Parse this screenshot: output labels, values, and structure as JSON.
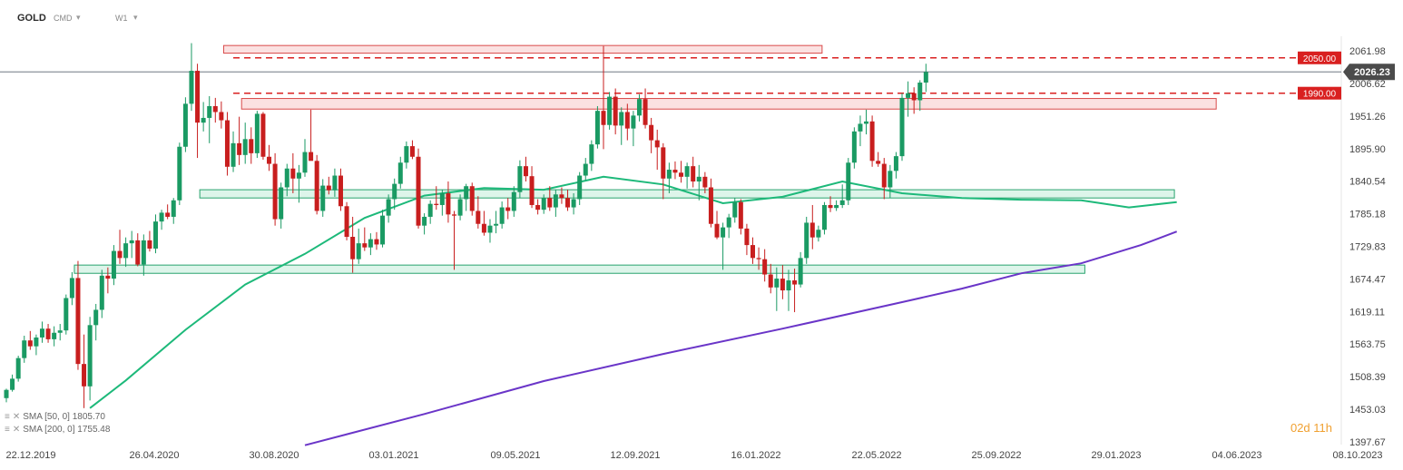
{
  "header": {
    "symbol": "GOLD",
    "symbol_type": "CMD",
    "timeframe": "W1"
  },
  "indicators": [
    {
      "label": "SMA",
      "params": "[50, 0]",
      "value": "1805.70",
      "color": "#1db97a"
    },
    {
      "label": "SMA",
      "params": "[200, 0]",
      "value": "1755.48",
      "color": "#6a35c8"
    }
  ],
  "timer": "02d 11h",
  "colors": {
    "bull": "#1a9a63",
    "bear": "#c81e1e",
    "resistance_fill": "#fadada",
    "resistance_stroke": "#d94a4a",
    "support_fill": "#d5f3e5",
    "support_stroke": "#28a36e",
    "sma50": "#1db97a",
    "sma200": "#6a35c8",
    "price_tag": "#4b4b4b",
    "level_tag": "#d92020"
  },
  "chart_data": {
    "type": "candlestick",
    "instrument": "GOLD",
    "timeframe": "W1",
    "y_ticks": [
      2061.98,
      2006.62,
      1951.26,
      1895.9,
      1840.54,
      1785.18,
      1729.83,
      1674.47,
      1619.11,
      1563.75,
      1508.39,
      1453.03,
      1397.67
    ],
    "y_tick_labels": [
      "2061.98",
      "2006.62",
      "1951.26",
      "1895.90",
      "1840.54",
      "1785.18",
      "1729.83",
      "1674.47",
      "1619.11",
      "1563.75",
      "1508.39",
      "1453.03",
      "1397.67"
    ],
    "x_tick_labels": [
      "22.12.2019",
      "26.04.2020",
      "30.08.2020",
      "03.01.2021",
      "09.05.2021",
      "12.09.2021",
      "16.01.2022",
      "22.05.2022",
      "25.09.2022",
      "29.01.2023",
      "04.06.2023",
      "08.10.2023"
    ],
    "ylim": [
      1391,
      2087
    ],
    "current_price": 2026.23,
    "current_price_label": "2026.23",
    "levels": [
      {
        "value": 2050,
        "label": "2050.00",
        "style": "dashed"
      },
      {
        "value": 1990,
        "label": "1990.00",
        "style": "dashed"
      }
    ],
    "zones": [
      {
        "kind": "resistance",
        "from_bar": 37,
        "to_bar": 136,
        "low": 2058,
        "high": 2071
      },
      {
        "kind": "resistance",
        "from_bar": 40,
        "to_bar": 202,
        "low": 1963,
        "high": 1981
      },
      {
        "kind": "support",
        "from_bar": 33,
        "to_bar": 195,
        "low": 1812,
        "high": 1826
      },
      {
        "kind": "support",
        "from_bar": 12,
        "to_bar": 180,
        "low": 1684,
        "high": 1698
      }
    ],
    "series": [
      {
        "name": "SMA [50, 0]",
        "type": "line",
        "points": [
          [
            14,
            1455
          ],
          [
            20,
            1502
          ],
          [
            30,
            1588
          ],
          [
            40,
            1665
          ],
          [
            50,
            1717
          ],
          [
            60,
            1778
          ],
          [
            70,
            1816
          ],
          [
            80,
            1829
          ],
          [
            90,
            1826
          ],
          [
            100,
            1848
          ],
          [
            110,
            1835
          ],
          [
            120,
            1803
          ],
          [
            130,
            1814
          ],
          [
            140,
            1840
          ],
          [
            150,
            1820
          ],
          [
            160,
            1812
          ],
          [
            170,
            1809
          ],
          [
            180,
            1808
          ],
          [
            188,
            1796
          ],
          [
            196,
            1805
          ]
        ]
      },
      {
        "name": "SMA [200, 0]",
        "type": "line",
        "points": [
          [
            50,
            1392
          ],
          [
            70,
            1445
          ],
          [
            90,
            1501
          ],
          [
            110,
            1547
          ],
          [
            130,
            1590
          ],
          [
            150,
            1635
          ],
          [
            160,
            1658
          ],
          [
            170,
            1684
          ],
          [
            180,
            1701
          ],
          [
            190,
            1732
          ],
          [
            196,
            1755
          ]
        ]
      }
    ],
    "candles": [
      [
        1472,
        1488,
        1465,
        1486
      ],
      [
        1486,
        1512,
        1483,
        1505
      ],
      [
        1505,
        1544,
        1500,
        1540
      ],
      [
        1540,
        1578,
        1532,
        1570
      ],
      [
        1570,
        1586,
        1554,
        1560
      ],
      [
        1560,
        1580,
        1545,
        1575
      ],
      [
        1575,
        1602,
        1566,
        1590
      ],
      [
        1590,
        1598,
        1566,
        1572
      ],
      [
        1572,
        1594,
        1560,
        1583
      ],
      [
        1583,
        1598,
        1570,
        1587
      ],
      [
        1587,
        1648,
        1580,
        1642
      ],
      [
        1642,
        1686,
        1630,
        1676
      ],
      [
        1676,
        1705,
        1520,
        1530
      ],
      [
        1530,
        1580,
        1455,
        1492
      ],
      [
        1492,
        1610,
        1468,
        1596
      ],
      [
        1596,
        1632,
        1570,
        1622
      ],
      [
        1622,
        1690,
        1608,
        1680
      ],
      [
        1680,
        1694,
        1650,
        1675
      ],
      [
        1675,
        1732,
        1664,
        1722
      ],
      [
        1722,
        1758,
        1700,
        1710
      ],
      [
        1710,
        1745,
        1695,
        1735
      ],
      [
        1735,
        1756,
        1710,
        1740
      ],
      [
        1740,
        1752,
        1696,
        1699
      ],
      [
        1699,
        1750,
        1680,
        1740
      ],
      [
        1740,
        1756,
        1721,
        1726
      ],
      [
        1726,
        1784,
        1718,
        1772
      ],
      [
        1772,
        1792,
        1758,
        1787
      ],
      [
        1787,
        1801,
        1776,
        1780
      ],
      [
        1780,
        1812,
        1768,
        1808
      ],
      [
        1808,
        1906,
        1800,
        1899
      ],
      [
        1899,
        1983,
        1890,
        1972
      ],
      [
        1972,
        2075,
        1960,
        2028
      ],
      [
        2028,
        2040,
        1880,
        1940
      ],
      [
        1940,
        1975,
        1925,
        1948
      ],
      [
        1948,
        1985,
        1905,
        1968
      ],
      [
        1968,
        1982,
        1940,
        1958
      ],
      [
        1958,
        1976,
        1930,
        1944
      ],
      [
        1944,
        1958,
        1850,
        1865
      ],
      [
        1865,
        1925,
        1856,
        1905
      ],
      [
        1905,
        1950,
        1868,
        1885
      ],
      [
        1885,
        1940,
        1870,
        1912
      ],
      [
        1912,
        1932,
        1870,
        1888
      ],
      [
        1888,
        1960,
        1880,
        1955
      ],
      [
        1955,
        1958,
        1877,
        1882
      ],
      [
        1882,
        1902,
        1858,
        1870
      ],
      [
        1870,
        1888,
        1765,
        1776
      ],
      [
        1776,
        1838,
        1760,
        1830
      ],
      [
        1830,
        1870,
        1815,
        1862
      ],
      [
        1862,
        1888,
        1820,
        1845
      ],
      [
        1845,
        1868,
        1804,
        1855
      ],
      [
        1855,
        1912,
        1848,
        1890
      ],
      [
        1890,
        1962,
        1880,
        1875
      ],
      [
        1875,
        1885,
        1784,
        1790
      ],
      [
        1790,
        1844,
        1780,
        1833
      ],
      [
        1833,
        1848,
        1818,
        1825
      ],
      [
        1825,
        1862,
        1814,
        1850
      ],
      [
        1850,
        1862,
        1790,
        1798
      ],
      [
        1798,
        1805,
        1740,
        1746
      ],
      [
        1746,
        1780,
        1685,
        1708
      ],
      [
        1708,
        1760,
        1700,
        1735
      ],
      [
        1735,
        1762,
        1722,
        1728
      ],
      [
        1728,
        1752,
        1715,
        1742
      ],
      [
        1742,
        1754,
        1724,
        1733
      ],
      [
        1733,
        1792,
        1728,
        1782
      ],
      [
        1782,
        1818,
        1770,
        1810
      ],
      [
        1810,
        1845,
        1792,
        1836
      ],
      [
        1836,
        1882,
        1828,
        1872
      ],
      [
        1872,
        1908,
        1862,
        1900
      ],
      [
        1900,
        1910,
        1878,
        1882
      ],
      [
        1882,
        1896,
        1760,
        1765
      ],
      [
        1765,
        1786,
        1750,
        1780
      ],
      [
        1780,
        1808,
        1768,
        1802
      ],
      [
        1802,
        1832,
        1792,
        1800
      ],
      [
        1800,
        1826,
        1782,
        1820
      ],
      [
        1820,
        1840,
        1770,
        1784
      ],
      [
        1784,
        1790,
        1690,
        1782
      ],
      [
        1782,
        1818,
        1774,
        1810
      ],
      [
        1810,
        1836,
        1790,
        1832
      ],
      [
        1832,
        1838,
        1782,
        1790
      ],
      [
        1790,
        1815,
        1760,
        1768
      ],
      [
        1768,
        1790,
        1748,
        1753
      ],
      [
        1753,
        1776,
        1736,
        1765
      ],
      [
        1765,
        1790,
        1752,
        1768
      ],
      [
        1768,
        1806,
        1760,
        1796
      ],
      [
        1796,
        1812,
        1776,
        1790
      ],
      [
        1790,
        1832,
        1780,
        1822
      ],
      [
        1822,
        1876,
        1812,
        1866
      ],
      [
        1866,
        1882,
        1840,
        1849
      ],
      [
        1849,
        1866,
        1795,
        1800
      ],
      [
        1800,
        1810,
        1784,
        1792
      ],
      [
        1792,
        1818,
        1785,
        1812
      ],
      [
        1812,
        1832,
        1790,
        1796
      ],
      [
        1796,
        1826,
        1780,
        1818
      ],
      [
        1818,
        1830,
        1802,
        1812
      ],
      [
        1812,
        1826,
        1790,
        1796
      ],
      [
        1796,
        1820,
        1784,
        1810
      ],
      [
        1810,
        1856,
        1800,
        1850
      ],
      [
        1850,
        1880,
        1842,
        1870
      ],
      [
        1870,
        1910,
        1858,
        1903
      ],
      [
        1903,
        1968,
        1896,
        1960
      ],
      [
        1960,
        2070,
        1895,
        1936
      ],
      [
        1936,
        1992,
        1928,
        1984
      ],
      [
        1984,
        1998,
        1920,
        1935
      ],
      [
        1935,
        1966,
        1902,
        1958
      ],
      [
        1958,
        1972,
        1910,
        1930
      ],
      [
        1930,
        1960,
        1900,
        1952
      ],
      [
        1952,
        1988,
        1942,
        1980
      ],
      [
        1980,
        1998,
        1930,
        1936
      ],
      [
        1936,
        1948,
        1888,
        1910
      ],
      [
        1910,
        1928,
        1860,
        1898
      ],
      [
        1898,
        1905,
        1810,
        1845
      ],
      [
        1845,
        1872,
        1820,
        1860
      ],
      [
        1860,
        1874,
        1844,
        1855
      ],
      [
        1855,
        1875,
        1838,
        1848
      ],
      [
        1848,
        1872,
        1828,
        1866
      ],
      [
        1866,
        1882,
        1830,
        1840
      ],
      [
        1840,
        1868,
        1808,
        1848
      ],
      [
        1848,
        1856,
        1820,
        1830
      ],
      [
        1830,
        1845,
        1762,
        1768
      ],
      [
        1768,
        1790,
        1742,
        1745
      ],
      [
        1745,
        1770,
        1690,
        1762
      ],
      [
        1762,
        1785,
        1744,
        1779
      ],
      [
        1779,
        1812,
        1770,
        1805
      ],
      [
        1805,
        1810,
        1750,
        1760
      ],
      [
        1760,
        1768,
        1715,
        1732
      ],
      [
        1732,
        1745,
        1700,
        1710
      ],
      [
        1710,
        1728,
        1690,
        1708
      ],
      [
        1708,
        1725,
        1670,
        1682
      ],
      [
        1682,
        1700,
        1650,
        1660
      ],
      [
        1660,
        1694,
        1620,
        1675
      ],
      [
        1675,
        1698,
        1640,
        1655
      ],
      [
        1655,
        1690,
        1620,
        1672
      ],
      [
        1672,
        1692,
        1618,
        1665
      ],
      [
        1665,
        1720,
        1660,
        1710
      ],
      [
        1710,
        1780,
        1700,
        1770
      ],
      [
        1770,
        1800,
        1725,
        1745
      ],
      [
        1745,
        1765,
        1738,
        1758
      ],
      [
        1758,
        1805,
        1750,
        1800
      ],
      [
        1800,
        1815,
        1788,
        1795
      ],
      [
        1795,
        1808,
        1790,
        1800
      ],
      [
        1800,
        1835,
        1795,
        1808
      ],
      [
        1808,
        1880,
        1800,
        1872
      ],
      [
        1872,
        1932,
        1862,
        1925
      ],
      [
        1925,
        1952,
        1900,
        1938
      ],
      [
        1938,
        1962,
        1920,
        1942
      ],
      [
        1942,
        1952,
        1865,
        1875
      ],
      [
        1875,
        1890,
        1865,
        1870
      ],
      [
        1870,
        1880,
        1810,
        1830
      ],
      [
        1830,
        1868,
        1812,
        1858
      ],
      [
        1858,
        1890,
        1845,
        1883
      ],
      [
        1883,
        1990,
        1875,
        1982
      ],
      [
        1982,
        2010,
        1950,
        1990
      ],
      [
        1990,
        2000,
        1955,
        1978
      ],
      [
        1978,
        2012,
        1960,
        2008
      ],
      [
        2008,
        2040,
        1992,
        2026
      ]
    ]
  }
}
